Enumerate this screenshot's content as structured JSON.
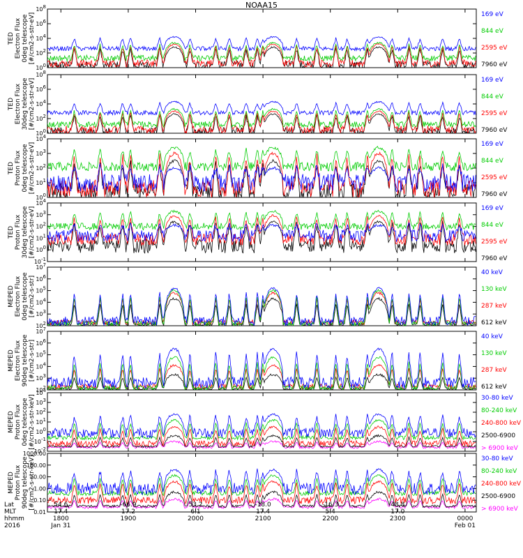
{
  "title": "NOAA15",
  "chart_data": [
    {
      "type": "line",
      "ylabel": [
        "TED",
        "Electron Flux",
        "0deg telescope",
        "[#/cm2-s-str-eV]"
      ],
      "y_log": true,
      "yticks": [
        "10^0",
        "10^2",
        "10^4",
        "10^6",
        "10^8"
      ],
      "ylim_exp": [
        0,
        8
      ],
      "series": [
        {
          "name": "7960 eV",
          "color": "#000000",
          "base": 0.3,
          "peak": 2.8,
          "noise": 0.6
        },
        {
          "name": "2595 eV",
          "color": "#ff0000",
          "base": 0.6,
          "peak": 3.2,
          "noise": 0.5
        },
        {
          "name": "844 eV",
          "color": "#00cc00",
          "base": 1.3,
          "peak": 3.4,
          "noise": 0.4
        },
        {
          "name": "169 eV",
          "color": "#0000ff",
          "base": 2.6,
          "peak": 4.2,
          "noise": 0.3
        }
      ]
    },
    {
      "type": "line",
      "ylabel": [
        "TED",
        "Electron Flux",
        "30deg telescope",
        "[#/cm2-s-str-eV]"
      ],
      "y_log": true,
      "yticks": [
        "10^0",
        "10^2",
        "10^4",
        "10^6",
        "10^8"
      ],
      "ylim_exp": [
        0,
        8
      ],
      "series": [
        {
          "name": "7960 eV",
          "color": "#000000",
          "base": 0.2,
          "peak": 2.6,
          "noise": 0.6
        },
        {
          "name": "2595 eV",
          "color": "#ff0000",
          "base": 0.5,
          "peak": 3.0,
          "noise": 0.5
        },
        {
          "name": "844 eV",
          "color": "#00cc00",
          "base": 1.2,
          "peak": 3.3,
          "noise": 0.4
        },
        {
          "name": "169 eV",
          "color": "#0000ff",
          "base": 2.8,
          "peak": 4.3,
          "noise": 0.3
        }
      ]
    },
    {
      "type": "line",
      "ylabel": [
        "TED",
        "Proton Flux",
        "0deg telescope",
        "[#/cm2-s-str-eV]"
      ],
      "y_log": true,
      "yticks": [
        "10^0",
        "10^1",
        "10^2",
        "10^3",
        "10^4"
      ],
      "ylim_exp": [
        0,
        4
      ],
      "series": [
        {
          "name": "7960 eV",
          "color": "#000000",
          "base": 0.4,
          "peak": 2.5,
          "noise": 0.6
        },
        {
          "name": "2595 eV",
          "color": "#ff0000",
          "base": 0.6,
          "peak": 3.0,
          "noise": 0.6
        },
        {
          "name": "844 eV",
          "color": "#00cc00",
          "base": 2.1,
          "peak": 3.4,
          "noise": 0.3
        },
        {
          "name": "169 eV",
          "color": "#0000ff",
          "base": 1.0,
          "peak": 2.0,
          "noise": 0.6
        }
      ]
    },
    {
      "type": "line",
      "ylabel": [
        "TED",
        "Proton Flux",
        "30deg telescope",
        "[#/cm2-s-str-eV]"
      ],
      "y_log": true,
      "yticks": [
        "10^-1",
        "10^0",
        "10^1",
        "10^2",
        "10^3",
        "10^4"
      ],
      "ylim_exp": [
        -1,
        4
      ],
      "series": [
        {
          "name": "7960 eV",
          "color": "#000000",
          "base": 0.3,
          "peak": 2.4,
          "noise": 0.6
        },
        {
          "name": "2595 eV",
          "color": "#ff0000",
          "base": 0.9,
          "peak": 2.9,
          "noise": 0.5
        },
        {
          "name": "844 eV",
          "color": "#00cc00",
          "base": 2.0,
          "peak": 3.3,
          "noise": 0.3
        },
        {
          "name": "169 eV",
          "color": "#0000ff",
          "base": 1.2,
          "peak": 2.1,
          "noise": 0.5
        }
      ]
    },
    {
      "type": "line",
      "ylabel": [
        "MEPED",
        "Electron Flux",
        "0deg telescope",
        "[#/cm2-s-str]"
      ],
      "y_log": true,
      "yticks": [
        "10^2",
        "10^3",
        "10^4",
        "10^5",
        "10^6",
        "10^7"
      ],
      "ylim_exp": [
        2,
        7
      ],
      "series": [
        {
          "name": "612 keV",
          "color": "#000000",
          "base": 2.1,
          "peak": 4.3,
          "noise": 0.1
        },
        {
          "name": "287 keV",
          "color": "#ff0000",
          "base": 2.3,
          "peak": 4.8,
          "noise": 0.2
        },
        {
          "name": "130 keV",
          "color": "#00cc00",
          "base": 2.2,
          "peak": 5.0,
          "noise": 0.2
        },
        {
          "name": "40 keV",
          "color": "#0000ff",
          "base": 2.4,
          "peak": 5.2,
          "noise": 0.4
        }
      ]
    },
    {
      "type": "line",
      "ylabel": [
        "MEPED",
        "Electron Flux",
        "90deg telescope",
        "[#/cm2-s-str]"
      ],
      "y_log": true,
      "yticks": [
        "10^2",
        "10^3",
        "10^4",
        "10^5",
        "10^6",
        "10^7"
      ],
      "ylim_exp": [
        2,
        7
      ],
      "series": [
        {
          "name": "612 keV",
          "color": "#000000",
          "base": 2.1,
          "peak": 3.3,
          "noise": 0.1
        },
        {
          "name": "287 keV",
          "color": "#ff0000",
          "base": 2.3,
          "peak": 4.1,
          "noise": 0.2
        },
        {
          "name": "130 keV",
          "color": "#00cc00",
          "base": 2.2,
          "peak": 4.8,
          "noise": 0.2
        },
        {
          "name": "40 keV",
          "color": "#0000ff",
          "base": 2.6,
          "peak": 5.5,
          "noise": 0.5
        }
      ]
    },
    {
      "type": "line",
      "ylabel": [
        "MEPED",
        "Proton Flux",
        "0deg telescope",
        "[#/cm2-s-str-keV]"
      ],
      "y_log": true,
      "yticks": [
        "10^-2",
        "10^-1",
        "10^0",
        "10^1",
        "10^2",
        "10^3",
        "10^4"
      ],
      "ylim_exp": [
        -2,
        4
      ],
      "series": [
        {
          "name": "> 6900 keV",
          "color": "#ff00ff",
          "base": -1.6,
          "peak": -1.0,
          "noise": 0.1
        },
        {
          "name": "2500-6900",
          "color": "#000000",
          "base": -1.5,
          "peak": -0.4,
          "noise": 0.1
        },
        {
          "name": "240-800 keV",
          "color": "#ff0000",
          "base": -1.2,
          "peak": 0.5,
          "noise": 0.3
        },
        {
          "name": "80-240 keV",
          "color": "#00cc00",
          "base": -0.6,
          "peak": 1.2,
          "noise": 0.2
        },
        {
          "name": "30-80 keV",
          "color": "#0000ff",
          "base": -0.1,
          "peak": 1.8,
          "noise": 0.5
        }
      ]
    },
    {
      "type": "line",
      "ylabel": [
        "MEPED",
        "Proton Flux",
        "90deg telescope",
        "[#/cm2-s-str-keV]"
      ],
      "y_log": true,
      "yticks": [
        "0.01",
        "0.10",
        "1.00",
        "10.00",
        "100.00",
        "1000.00"
      ],
      "ylim_exp": [
        -2,
        3
      ],
      "series": [
        {
          "name": "> 6900 keV",
          "color": "#ff00ff",
          "base": -1.6,
          "peak": -0.9,
          "noise": 0.1
        },
        {
          "name": "2500-6900",
          "color": "#000000",
          "base": -1.5,
          "peak": -0.3,
          "noise": 0.1
        },
        {
          "name": "240-800 keV",
          "color": "#ff0000",
          "base": -1.0,
          "peak": 0.6,
          "noise": 0.3
        },
        {
          "name": "80-240 keV",
          "color": "#00cc00",
          "base": -0.4,
          "peak": 1.1,
          "noise": 0.2
        },
        {
          "name": "30-80 keV",
          "color": "#0000ff",
          "base": 0.0,
          "peak": 1.6,
          "noise": 0.5
        }
      ]
    }
  ],
  "x_axis": {
    "row_labels": [
      "Lat",
      "MLT",
      "hhmm",
      "2016"
    ],
    "ticks": [
      {
        "lat": "54.6",
        "mlt": "17.4",
        "hhmm": "1800",
        "date": "Jan 31"
      },
      {
        "lat": "-66.9",
        "mlt": "17.2",
        "hhmm": "1900",
        "date": ""
      },
      {
        "lat": "53.2",
        "mlt": "6.1",
        "hhmm": "2000",
        "date": ""
      },
      {
        "lat": "-18.0",
        "mlt": "17.4",
        "hhmm": "2100",
        "date": ""
      },
      {
        "lat": "-16.3",
        "mlt": "5.4",
        "hhmm": "2200",
        "date": ""
      },
      {
        "lat": "48.8",
        "mlt": "17.0",
        "hhmm": "2300",
        "date": ""
      },
      {
        "lat": "",
        "mlt": "",
        "hhmm": "0000",
        "date": "Feb 01"
      }
    ],
    "belt_centers_hhmm": [
      "19:41",
      "21:09",
      "22:43"
    ],
    "activity_bursts_hhmm": [
      "18:12",
      "18:35",
      "18:55",
      "19:02",
      "19:28",
      "19:55",
      "20:18",
      "20:30",
      "20:45",
      "20:55",
      "21:00",
      "21:30",
      "21:48",
      "22:05",
      "22:15",
      "22:33",
      "22:55",
      "23:10",
      "23:20",
      "23:40",
      "23:55"
    ]
  }
}
